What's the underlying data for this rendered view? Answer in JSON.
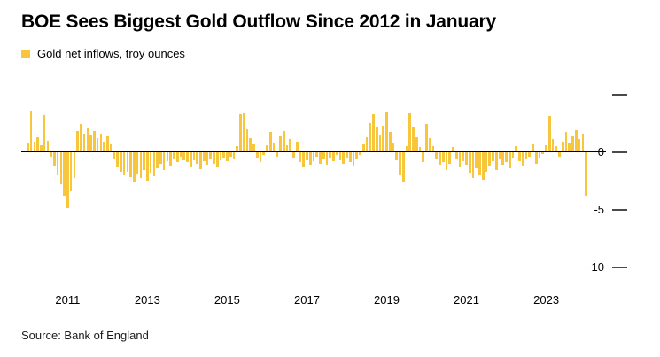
{
  "title": "BOE Sees Biggest Gold Outflow Since 2012 in January",
  "legend": {
    "label": "Gold net inflows, troy ounces"
  },
  "source": "Source: Bank of England",
  "colors": {
    "bar": "#F8C63C",
    "zero_line": "#000000",
    "tick": "#4a4a4a",
    "text": "#000000"
  },
  "chart_data": {
    "type": "bar",
    "title": "BOE Sees Biggest Gold Outflow Since 2012 in January",
    "ylabel": "Gold net inflows, troy ounces",
    "grid": "off",
    "legend_position": "top-left",
    "x_axis": {
      "start_year": 2010,
      "start_month": 1,
      "frequency": "monthly",
      "tick_years": [
        2011,
        2013,
        2015,
        2017,
        2019,
        2021,
        2023
      ]
    },
    "y_axis": {
      "range": [
        -11.5,
        5.5
      ],
      "ticks": [
        {
          "value": 5,
          "label": ""
        },
        {
          "value": 0,
          "label": "0"
        },
        {
          "value": -5,
          "label": "-5"
        },
        {
          "value": -10,
          "label": "-10"
        }
      ]
    },
    "values": [
      0.8,
      3.6,
      0.9,
      1.3,
      0.6,
      3.2,
      1.0,
      -0.4,
      -1.2,
      -2.0,
      -2.8,
      -3.8,
      -4.9,
      -3.4,
      -2.3,
      1.8,
      2.4,
      1.6,
      2.1,
      1.5,
      1.8,
      1.2,
      1.6,
      0.9,
      1.4,
      0.7,
      -0.6,
      -1.3,
      -1.7,
      -2.0,
      -1.7,
      -2.2,
      -2.6,
      -1.9,
      -2.3,
      -1.6,
      -2.5,
      -1.8,
      -2.1,
      -1.4,
      -1.0,
      -1.6,
      -0.8,
      -1.2,
      -0.6,
      -0.9,
      -0.4,
      -0.7,
      -0.9,
      -1.3,
      -0.7,
      -1.0,
      -1.5,
      -0.8,
      -1.1,
      -0.6,
      -1.0,
      -1.3,
      -0.7,
      -0.5,
      -0.8,
      -0.4,
      -0.6,
      0.5,
      3.3,
      3.4,
      2.0,
      1.2,
      0.7,
      -0.5,
      -0.9,
      -0.3,
      0.6,
      1.7,
      0.8,
      -0.4,
      1.4,
      1.8,
      0.6,
      1.1,
      -0.5,
      0.9,
      -0.9,
      -1.3,
      -0.7,
      -1.1,
      -0.8,
      -0.4,
      -1.0,
      -0.6,
      -1.1,
      -0.5,
      -0.8,
      -0.3,
      -0.7,
      -1.0,
      -0.5,
      -0.9,
      -1.2,
      -0.6,
      -0.3,
      0.7,
      1.3,
      2.5,
      3.3,
      2.2,
      1.5,
      2.3,
      3.5,
      1.7,
      0.8,
      -0.7,
      -2.0,
      -2.6,
      0.5,
      3.4,
      2.2,
      1.3,
      0.4,
      -0.9,
      2.4,
      1.2,
      0.5,
      -0.6,
      -1.1,
      -0.9,
      -1.6,
      -1.0,
      0.4,
      -0.6,
      -1.3,
      -0.8,
      -1.1,
      -1.8,
      -2.3,
      -1.4,
      -2.0,
      -2.4,
      -1.7,
      -1.2,
      -0.8,
      -1.6,
      -0.6,
      -1.1,
      -0.9,
      -1.4,
      -0.5,
      0.5,
      -0.8,
      -1.2,
      -0.6,
      -0.4,
      0.7,
      -1.0,
      -0.5,
      -0.2,
      0.6,
      3.1,
      1.1,
      0.5,
      -0.4,
      0.9,
      1.7,
      0.8,
      1.4,
      1.9,
      1.1,
      1.6,
      -3.8
    ]
  }
}
